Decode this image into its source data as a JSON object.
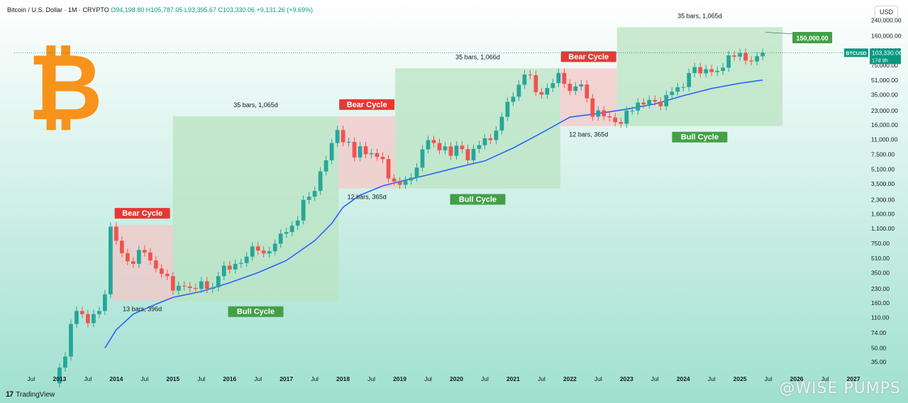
{
  "header": {
    "symbol_title": "Bitcoin / U.S. Dollar · 1M · CRYPTO",
    "open": "O94,198.80",
    "high": "H105,787.05",
    "low": "L93,395.67",
    "close": "C103,330.06",
    "change": "+9,131.26 (+9.69%)",
    "currency_button": "USD"
  },
  "footer": {
    "brand": "TradingView",
    "brand_mark": "17",
    "watermark": "@WISE PUMPS"
  },
  "logo": {
    "glyph": "₿",
    "color": "#f7931a"
  },
  "price_tag": {
    "symbol": "BTCUSD",
    "price": "103,330.06",
    "countdown": "17d 9h",
    "color": "#089981"
  },
  "target_tag": {
    "label": "150,000.00",
    "value": 150000,
    "color": "#43a047"
  },
  "chart_data": {
    "type": "candlestick",
    "y_scale": "log",
    "ylim": [
      28,
      280000
    ],
    "y_ticks": [
      35,
      50,
      74,
      110,
      160,
      230,
      350,
      510,
      750,
      1100,
      1600,
      2300,
      3500,
      5100,
      7500,
      11000,
      16000,
      23000,
      35000,
      51000,
      75000,
      110000,
      160000,
      240000
    ],
    "x_ticks": [
      {
        "label": "Jul",
        "t": 2012.5
      },
      {
        "label": "2013",
        "t": 2013.0
      },
      {
        "label": "Jul",
        "t": 2013.5
      },
      {
        "label": "2014",
        "t": 2014.0
      },
      {
        "label": "Jul",
        "t": 2014.5
      },
      {
        "label": "2015",
        "t": 2015.0
      },
      {
        "label": "Jul",
        "t": 2015.5
      },
      {
        "label": "2016",
        "t": 2016.0
      },
      {
        "label": "Jul",
        "t": 2016.5
      },
      {
        "label": "2017",
        "t": 2017.0
      },
      {
        "label": "Jul",
        "t": 2017.5
      },
      {
        "label": "2018",
        "t": 2018.0
      },
      {
        "label": "Jul",
        "t": 2018.5
      },
      {
        "label": "2019",
        "t": 2019.0
      },
      {
        "label": "Jul",
        "t": 2019.5
      },
      {
        "label": "2020",
        "t": 2020.0
      },
      {
        "label": "Jul",
        "t": 2020.5
      },
      {
        "label": "2021",
        "t": 2021.0
      },
      {
        "label": "Jul",
        "t": 2021.5
      },
      {
        "label": "2022",
        "t": 2022.0
      },
      {
        "label": "Jul",
        "t": 2022.5
      },
      {
        "label": "2023",
        "t": 2023.0
      },
      {
        "label": "Jul",
        "t": 2023.5
      },
      {
        "label": "2024",
        "t": 2024.0
      },
      {
        "label": "Jul",
        "t": 2024.5
      },
      {
        "label": "2025",
        "t": 2025.0
      },
      {
        "label": "Jul",
        "t": 2025.5
      },
      {
        "label": "2026",
        "t": 2026.0
      },
      {
        "label": "Jul",
        "t": 2026.5
      },
      {
        "label": "2027",
        "t": 2027.0
      }
    ],
    "candles_close": [
      [
        2013.0,
        30
      ],
      [
        2013.1,
        40
      ],
      [
        2013.2,
        93
      ],
      [
        2013.3,
        130
      ],
      [
        2013.4,
        120
      ],
      [
        2013.5,
        95
      ],
      [
        2013.6,
        120
      ],
      [
        2013.7,
        130
      ],
      [
        2013.8,
        200
      ],
      [
        2013.9,
        1150
      ],
      [
        2014.0,
        800
      ],
      [
        2014.1,
        580
      ],
      [
        2014.2,
        470
      ],
      [
        2014.3,
        440
      ],
      [
        2014.4,
        630
      ],
      [
        2014.5,
        590
      ],
      [
        2014.6,
        480
      ],
      [
        2014.7,
        390
      ],
      [
        2014.8,
        340
      ],
      [
        2014.9,
        320
      ],
      [
        2015.0,
        220
      ],
      [
        2015.1,
        250
      ],
      [
        2015.2,
        245
      ],
      [
        2015.3,
        235
      ],
      [
        2015.4,
        230
      ],
      [
        2015.5,
        280
      ],
      [
        2015.6,
        230
      ],
      [
        2015.7,
        240
      ],
      [
        2015.8,
        320
      ],
      [
        2015.9,
        420
      ],
      [
        2016.0,
        380
      ],
      [
        2016.1,
        440
      ],
      [
        2016.2,
        450
      ],
      [
        2016.3,
        530
      ],
      [
        2016.4,
        690
      ],
      [
        2016.5,
        620
      ],
      [
        2016.6,
        575
      ],
      [
        2016.7,
        610
      ],
      [
        2016.8,
        740
      ],
      [
        2016.9,
        960
      ],
      [
        2017.0,
        1000
      ],
      [
        2017.1,
        1180
      ],
      [
        2017.2,
        1350
      ],
      [
        2017.3,
        2300
      ],
      [
        2017.4,
        2500
      ],
      [
        2017.5,
        2900
      ],
      [
        2017.6,
        4800
      ],
      [
        2017.7,
        6400
      ],
      [
        2017.8,
        10000
      ],
      [
        2017.9,
        14000
      ],
      [
        2018.0,
        10200
      ],
      [
        2018.1,
        10300
      ],
      [
        2018.2,
        6900
      ],
      [
        2018.3,
        9200
      ],
      [
        2018.4,
        7500
      ],
      [
        2018.5,
        7700
      ],
      [
        2018.6,
        7000
      ],
      [
        2018.7,
        6600
      ],
      [
        2018.8,
        4000
      ],
      [
        2018.9,
        3700
      ],
      [
        2019.0,
        3400
      ],
      [
        2019.1,
        3800
      ],
      [
        2019.2,
        4100
      ],
      [
        2019.3,
        5300
      ],
      [
        2019.4,
        8500
      ],
      [
        2019.5,
        10800
      ],
      [
        2019.6,
        10000
      ],
      [
        2019.7,
        8300
      ],
      [
        2019.8,
        9150
      ],
      [
        2019.9,
        7200
      ],
      [
        2020.0,
        9350
      ],
      [
        2020.1,
        8550
      ],
      [
        2020.2,
        6400
      ],
      [
        2020.3,
        8600
      ],
      [
        2020.4,
        9450
      ],
      [
        2020.5,
        11300
      ],
      [
        2020.6,
        10800
      ],
      [
        2020.7,
        13800
      ],
      [
        2020.8,
        19700
      ],
      [
        2020.9,
        29000
      ],
      [
        2021.0,
        33100
      ],
      [
        2021.1,
        45200
      ],
      [
        2021.2,
        58800
      ],
      [
        2021.3,
        57700
      ],
      [
        2021.4,
        37300
      ],
      [
        2021.5,
        35000
      ],
      [
        2021.6,
        41500
      ],
      [
        2021.7,
        47100
      ],
      [
        2021.8,
        61300
      ],
      [
        2021.9,
        46300
      ],
      [
        2022.0,
        38500
      ],
      [
        2022.1,
        43200
      ],
      [
        2022.2,
        45500
      ],
      [
        2022.3,
        31800
      ],
      [
        2022.4,
        19800
      ],
      [
        2022.5,
        23300
      ],
      [
        2022.6,
        20000
      ],
      [
        2022.7,
        19400
      ],
      [
        2022.8,
        17200
      ],
      [
        2022.9,
        16500
      ],
      [
        2023.0,
        23100
      ],
      [
        2023.1,
        23100
      ],
      [
        2023.2,
        28500
      ],
      [
        2023.3,
        27200
      ],
      [
        2023.4,
        30500
      ],
      [
        2023.5,
        29200
      ],
      [
        2023.6,
        25900
      ],
      [
        2023.7,
        34600
      ],
      [
        2023.8,
        37700
      ],
      [
        2023.9,
        42300
      ],
      [
        2024.0,
        42500
      ],
      [
        2024.1,
        61100
      ],
      [
        2024.2,
        71300
      ],
      [
        2024.3,
        60600
      ],
      [
        2024.4,
        67500
      ],
      [
        2024.5,
        62700
      ],
      [
        2024.6,
        64600
      ],
      [
        2024.7,
        70200
      ],
      [
        2024.8,
        96400
      ],
      [
        2024.9,
        93400
      ],
      [
        2025.0,
        102400
      ],
      [
        2025.1,
        84300
      ],
      [
        2025.2,
        82500
      ],
      [
        2025.3,
        94200
      ],
      [
        2025.4,
        103330
      ]
    ],
    "moving_average": [
      [
        2013.8,
        50
      ],
      [
        2014.0,
        80
      ],
      [
        2014.3,
        120
      ],
      [
        2014.7,
        155
      ],
      [
        2015.0,
        185
      ],
      [
        2015.5,
        215
      ],
      [
        2016.0,
        270
      ],
      [
        2016.5,
        350
      ],
      [
        2017.0,
        480
      ],
      [
        2017.5,
        800
      ],
      [
        2017.8,
        1250
      ],
      [
        2018.0,
        1900
      ],
      [
        2018.3,
        2600
      ],
      [
        2018.7,
        3300
      ],
      [
        2019.0,
        3700
      ],
      [
        2019.5,
        4400
      ],
      [
        2020.0,
        5300
      ],
      [
        2020.5,
        6300
      ],
      [
        2021.0,
        8800
      ],
      [
        2021.5,
        13000
      ],
      [
        2022.0,
        19500
      ],
      [
        2022.5,
        21500
      ],
      [
        2023.0,
        24000
      ],
      [
        2023.5,
        27500
      ],
      [
        2024.0,
        34000
      ],
      [
        2024.5,
        41000
      ],
      [
        2025.0,
        47000
      ],
      [
        2025.4,
        51000
      ]
    ],
    "cycles": [
      {
        "type": "bear",
        "label": "Bear Cycle",
        "t0": 2013.92,
        "t1": 2015.0,
        "low": 170,
        "high": 1200,
        "measure": "13 bars, 396d",
        "measure_pos": "bottom",
        "label_pos": "top"
      },
      {
        "type": "bull",
        "label": "Bull Cycle",
        "t0": 2015.0,
        "t1": 2017.92,
        "low": 170,
        "high": 20000,
        "measure": "35 bars, 1,065d",
        "measure_pos": "top",
        "label_pos": "bottom"
      },
      {
        "type": "bear",
        "label": "Bear Cycle",
        "t0": 2017.92,
        "t1": 2018.92,
        "low": 3100,
        "high": 20000,
        "measure": "12 bars, 365d",
        "measure_pos": "bottom",
        "label_pos": "top"
      },
      {
        "type": "bull",
        "label": "Bull Cycle",
        "t0": 2018.92,
        "t1": 2021.83,
        "low": 3100,
        "high": 69000,
        "measure": "35 bars, 1,066d",
        "measure_pos": "top",
        "label_pos": "bottom"
      },
      {
        "type": "bear",
        "label": "Bear Cycle",
        "t0": 2021.83,
        "t1": 2022.83,
        "low": 15500,
        "high": 69000,
        "measure": "12 bars, 365d",
        "measure_pos": "bottom",
        "label_pos": "top"
      },
      {
        "type": "bull",
        "label": "Bull Cycle",
        "t0": 2022.83,
        "t1": 2025.75,
        "low": 15500,
        "high": 200000,
        "measure": "35 bars, 1,065d",
        "measure_pos": "top",
        "label_pos": "bottom"
      }
    ],
    "colors": {
      "up": "#26a69a",
      "down": "#ef5350",
      "ma": "#2962ff",
      "bear_fill": "#f4c7c7",
      "bull_fill": "#b9e3c1",
      "bear_label": "#e53935",
      "bull_label": "#43a047"
    }
  }
}
